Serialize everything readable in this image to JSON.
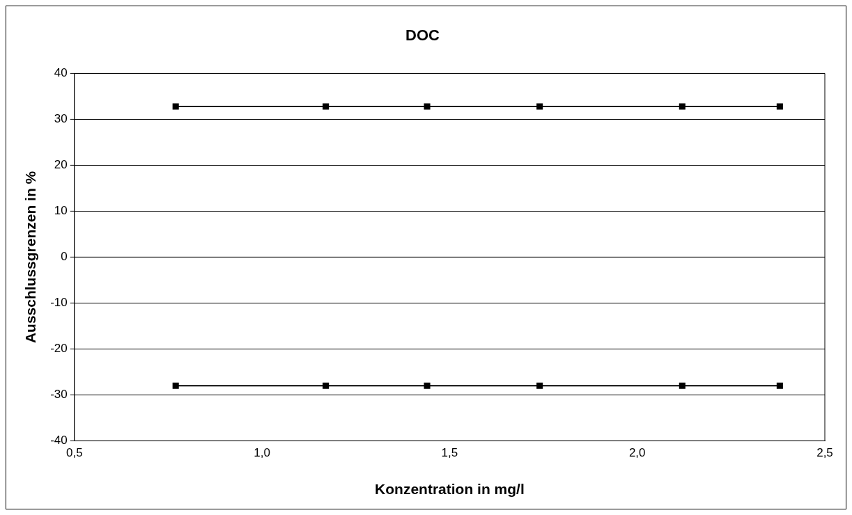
{
  "chart_data": {
    "type": "line",
    "title": "DOC",
    "xlabel": "Konzentration in mg/l",
    "ylabel": "Ausschlussgrenzen in %",
    "x": [
      0.77,
      1.17,
      1.44,
      1.74,
      2.12,
      2.38
    ],
    "series": [
      {
        "color": "#000000",
        "values": [
          32.8,
          32.8,
          32.8,
          32.8,
          32.8,
          32.8
        ]
      },
      {
        "color": "#000000",
        "values": [
          -28,
          -28,
          -28,
          -28,
          -28,
          -28
        ]
      }
    ],
    "xlim": [
      0.5,
      2.5
    ],
    "xticks": [
      {
        "value": 0.5,
        "label": "0,5"
      },
      {
        "value": 1,
        "label": "1,0"
      },
      {
        "value": 1.5,
        "label": "1,5"
      },
      {
        "value": 2,
        "label": "2,0"
      },
      {
        "value": 2.5,
        "label": "2,5"
      }
    ],
    "ylim": [
      -40,
      40
    ],
    "yticks": [
      -40,
      -30,
      -20,
      -10,
      0,
      10,
      20,
      30,
      40
    ],
    "grid": "y",
    "marker": "square",
    "line_style": "solid"
  }
}
